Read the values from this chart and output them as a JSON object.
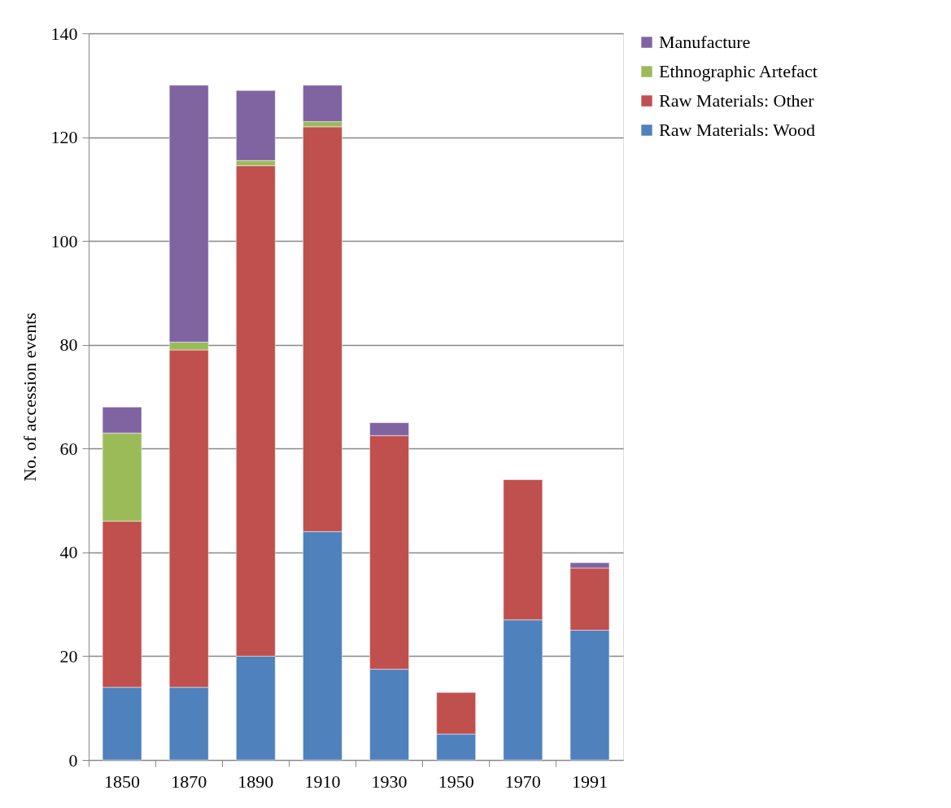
{
  "chart_data": {
    "type": "bar",
    "stacked": true,
    "ylabel": "No. of accession events",
    "categories": [
      "1850",
      "1870",
      "1890",
      "1910",
      "1930",
      "1950",
      "1970",
      "1991"
    ],
    "series": [
      {
        "name": "Raw Materials: Wood",
        "color": "#4f81bd",
        "values": [
          14,
          14,
          20,
          44,
          17.5,
          5,
          27,
          25
        ]
      },
      {
        "name": "Raw Materials: Other",
        "color": "#c0504d",
        "values": [
          32,
          65,
          94.5,
          78,
          45,
          8,
          27,
          12
        ]
      },
      {
        "name": "Ethnographic Artefact",
        "color": "#9bbb59",
        "values": [
          17,
          1.5,
          1,
          1,
          null,
          null,
          null,
          null
        ]
      },
      {
        "name": "Manufacture",
        "color": "#8064a2",
        "values": [
          5,
          49.5,
          13.5,
          7,
          2.5,
          null,
          null,
          1
        ]
      }
    ],
    "ylim": [
      0,
      140
    ],
    "yticks": [
      0,
      20,
      40,
      60,
      80,
      100,
      120,
      140
    ],
    "grid": "y",
    "legend": "right"
  }
}
